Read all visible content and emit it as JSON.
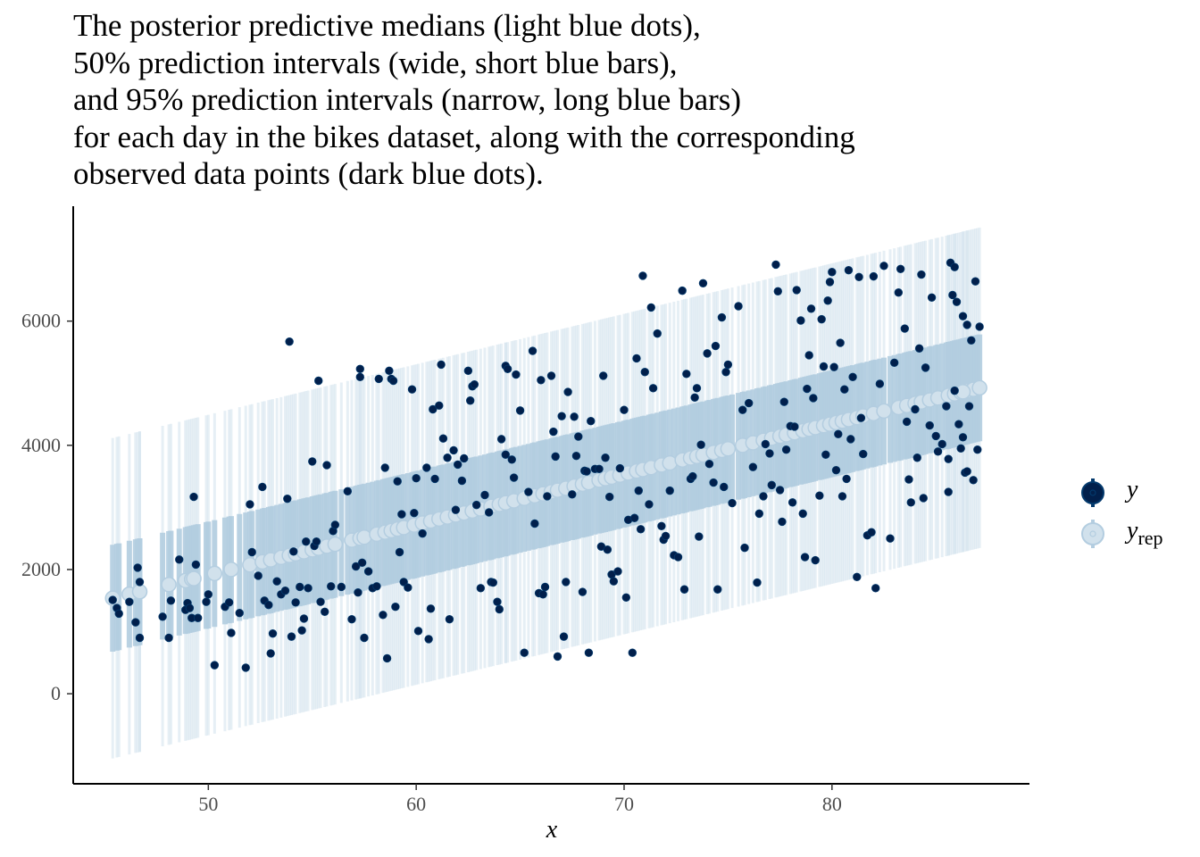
{
  "chart_data": {
    "type": "scatter",
    "title_lines": [
      "The posterior predictive medians (light blue dots),",
      "50% prediction intervals (wide, short blue bars),",
      "and 95% prediction intervals (narrow, long blue bars)",
      "for each day in the bikes dataset, along with the corresponding",
      "observed data points (dark blue dots)."
    ],
    "xlabel": "x",
    "ylabel": "",
    "xlim": [
      43.5,
      89.5
    ],
    "ylim": [
      -1450,
      7850
    ],
    "x_ticks": [
      50,
      60,
      70,
      80
    ],
    "y_ticks": [
      0,
      2000,
      4000,
      6000
    ],
    "grid": false,
    "legend": {
      "placement": "right",
      "entries": [
        {
          "label": "y",
          "subscript": ""
        },
        {
          "label": "y",
          "subscript": "rep"
        }
      ]
    },
    "colors": {
      "observed": "#011f4b",
      "observed_edge": "#03396c",
      "median": "#d1e1ec",
      "median_edge": "#b3cde0",
      "interval_50": "#b3cde0",
      "interval_95": "#d1e1ec",
      "axis": "#000000"
    },
    "model": {
      "median_intercept": 1530,
      "median_slope_per_x": 81.25,
      "median_x0": 45.3,
      "interval_50_halfwidth": 860,
      "interval_95_halfwidth": 2580
    },
    "series": [
      {
        "name": "y",
        "points": [
          [
            45.4,
            1510
          ],
          [
            45.6,
            1380
          ],
          [
            45.7,
            1290
          ],
          [
            46.2,
            1480
          ],
          [
            46.5,
            1150
          ],
          [
            46.6,
            2030
          ],
          [
            46.7,
            1800
          ],
          [
            46.7,
            900
          ],
          [
            47.8,
            1240
          ],
          [
            48.1,
            900
          ],
          [
            48.2,
            1500
          ],
          [
            48.6,
            2160
          ],
          [
            48.9,
            1350
          ],
          [
            49.0,
            1460
          ],
          [
            49.1,
            1380
          ],
          [
            49.2,
            1220
          ],
          [
            49.4,
            2080
          ],
          [
            49.5,
            1220
          ],
          [
            49.3,
            3170
          ],
          [
            49.9,
            1480
          ],
          [
            50.0,
            1600
          ],
          [
            50.3,
            460
          ],
          [
            50.8,
            1400
          ],
          [
            51.0,
            1470
          ],
          [
            51.1,
            980
          ],
          [
            51.5,
            1300
          ],
          [
            51.8,
            420
          ],
          [
            52.0,
            3050
          ],
          [
            52.1,
            2280
          ],
          [
            52.4,
            1900
          ],
          [
            52.6,
            3330
          ],
          [
            52.7,
            1500
          ],
          [
            52.9,
            1430
          ],
          [
            53.0,
            650
          ],
          [
            53.1,
            970
          ],
          [
            53.3,
            1810
          ],
          [
            53.5,
            1600
          ],
          [
            53.7,
            1660
          ],
          [
            53.8,
            3140
          ],
          [
            53.9,
            5670
          ],
          [
            54.0,
            920
          ],
          [
            54.1,
            2290
          ],
          [
            54.2,
            1470
          ],
          [
            54.4,
            1720
          ],
          [
            54.5,
            1020
          ],
          [
            54.6,
            1210
          ],
          [
            54.7,
            2450
          ],
          [
            54.8,
            1700
          ],
          [
            55.0,
            3740
          ],
          [
            55.1,
            2380
          ],
          [
            55.2,
            2450
          ],
          [
            55.3,
            5040
          ],
          [
            55.4,
            1480
          ],
          [
            55.6,
            1320
          ],
          [
            55.7,
            3680
          ],
          [
            55.9,
            1730
          ],
          [
            56.0,
            2620
          ],
          [
            56.1,
            2720
          ],
          [
            56.4,
            1720
          ],
          [
            56.7,
            3260
          ],
          [
            56.9,
            1200
          ],
          [
            57.1,
            2050
          ],
          [
            57.2,
            1630
          ],
          [
            57.3,
            5230
          ],
          [
            57.3,
            5100
          ],
          [
            57.4,
            2110
          ],
          [
            57.5,
            900
          ],
          [
            57.7,
            1970
          ],
          [
            57.9,
            1700
          ],
          [
            58.1,
            1730
          ],
          [
            58.2,
            5070
          ],
          [
            58.4,
            1270
          ],
          [
            58.5,
            3640
          ],
          [
            58.6,
            570
          ],
          [
            58.7,
            5200
          ],
          [
            58.8,
            5070
          ],
          [
            58.9,
            5040
          ],
          [
            59.0,
            1400
          ],
          [
            59.1,
            3420
          ],
          [
            59.2,
            2280
          ],
          [
            59.3,
            2890
          ],
          [
            59.4,
            1800
          ],
          [
            59.6,
            1710
          ],
          [
            59.8,
            4900
          ],
          [
            59.9,
            2910
          ],
          [
            60.0,
            3470
          ],
          [
            60.1,
            1010
          ],
          [
            60.3,
            2580
          ],
          [
            60.5,
            3640
          ],
          [
            60.6,
            880
          ],
          [
            60.7,
            1370
          ],
          [
            60.8,
            4580
          ],
          [
            60.9,
            3460
          ],
          [
            61.1,
            4640
          ],
          [
            61.2,
            5300
          ],
          [
            61.3,
            4110
          ],
          [
            61.5,
            3800
          ],
          [
            61.6,
            1200
          ],
          [
            61.8,
            3920
          ],
          [
            61.9,
            2960
          ],
          [
            62.0,
            3690
          ],
          [
            62.2,
            3430
          ],
          [
            62.3,
            3790
          ],
          [
            62.5,
            5200
          ],
          [
            62.6,
            4720
          ],
          [
            62.7,
            4950
          ],
          [
            62.8,
            4980
          ],
          [
            62.9,
            3040
          ],
          [
            63.1,
            1700
          ],
          [
            63.3,
            3200
          ],
          [
            63.5,
            2920
          ],
          [
            63.6,
            1800
          ],
          [
            63.7,
            1790
          ],
          [
            63.9,
            1480
          ],
          [
            64.0,
            1360
          ],
          [
            64.1,
            4100
          ],
          [
            64.3,
            3850
          ],
          [
            64.3,
            5280
          ],
          [
            64.4,
            5230
          ],
          [
            64.6,
            3770
          ],
          [
            64.7,
            3480
          ],
          [
            64.8,
            5140
          ],
          [
            65.0,
            4560
          ],
          [
            65.2,
            660
          ],
          [
            65.4,
            3250
          ],
          [
            65.6,
            5520
          ],
          [
            65.7,
            2740
          ],
          [
            65.9,
            1620
          ],
          [
            66.0,
            5050
          ],
          [
            66.1,
            1600
          ],
          [
            66.2,
            1720
          ],
          [
            66.3,
            3180
          ],
          [
            66.5,
            5120
          ],
          [
            66.6,
            4220
          ],
          [
            66.7,
            3820
          ],
          [
            66.8,
            600
          ],
          [
            67.0,
            4470
          ],
          [
            67.1,
            920
          ],
          [
            67.2,
            1800
          ],
          [
            67.3,
            4860
          ],
          [
            67.5,
            3210
          ],
          [
            67.6,
            4460
          ],
          [
            67.7,
            3830
          ],
          [
            67.8,
            4140
          ],
          [
            68.0,
            1640
          ],
          [
            68.1,
            3590
          ],
          [
            68.2,
            3580
          ],
          [
            68.3,
            660
          ],
          [
            68.4,
            4390
          ],
          [
            68.6,
            3620
          ],
          [
            68.8,
            3620
          ],
          [
            68.9,
            2370
          ],
          [
            69.0,
            5120
          ],
          [
            69.1,
            3800
          ],
          [
            69.2,
            2320
          ],
          [
            69.3,
            3170
          ],
          [
            69.4,
            1920
          ],
          [
            69.5,
            1810
          ],
          [
            69.7,
            1970
          ],
          [
            69.8,
            3630
          ],
          [
            70.0,
            4570
          ],
          [
            70.1,
            1550
          ],
          [
            70.2,
            2800
          ],
          [
            70.4,
            660
          ],
          [
            70.5,
            2830
          ],
          [
            70.6,
            5400
          ],
          [
            70.7,
            3270
          ],
          [
            70.8,
            2650
          ],
          [
            70.9,
            6730
          ],
          [
            71.0,
            5180
          ],
          [
            71.2,
            3050
          ],
          [
            71.3,
            6220
          ],
          [
            71.4,
            4920
          ],
          [
            71.6,
            5800
          ],
          [
            71.8,
            2700
          ],
          [
            71.9,
            2480
          ],
          [
            72.0,
            2540
          ],
          [
            72.2,
            3270
          ],
          [
            72.4,
            2230
          ],
          [
            72.6,
            2200
          ],
          [
            72.8,
            6490
          ],
          [
            72.9,
            1680
          ],
          [
            73.0,
            5150
          ],
          [
            73.2,
            3460
          ],
          [
            73.3,
            3500
          ],
          [
            73.4,
            4770
          ],
          [
            73.5,
            4920
          ],
          [
            73.6,
            2530
          ],
          [
            73.7,
            4010
          ],
          [
            73.8,
            6610
          ],
          [
            74.0,
            5480
          ],
          [
            74.1,
            3700
          ],
          [
            74.3,
            3400
          ],
          [
            74.4,
            5600
          ],
          [
            74.5,
            1680
          ],
          [
            74.7,
            6060
          ],
          [
            74.8,
            3330
          ],
          [
            74.9,
            5180
          ],
          [
            75.0,
            5300
          ],
          [
            75.2,
            3070
          ],
          [
            75.5,
            6240
          ],
          [
            75.7,
            4570
          ],
          [
            75.8,
            2350
          ],
          [
            76.0,
            4680
          ],
          [
            76.2,
            3650
          ],
          [
            76.4,
            1790
          ],
          [
            76.5,
            2900
          ],
          [
            76.7,
            3180
          ],
          [
            76.8,
            4020
          ],
          [
            77.0,
            3870
          ],
          [
            77.1,
            3360
          ],
          [
            77.3,
            6910
          ],
          [
            77.4,
            6480
          ],
          [
            77.5,
            3280
          ],
          [
            77.6,
            2770
          ],
          [
            77.7,
            4700
          ],
          [
            77.8,
            3930
          ],
          [
            78.0,
            4310
          ],
          [
            78.1,
            3080
          ],
          [
            78.2,
            4300
          ],
          [
            78.3,
            6500
          ],
          [
            78.5,
            6010
          ],
          [
            78.6,
            2900
          ],
          [
            78.7,
            2200
          ],
          [
            78.8,
            4910
          ],
          [
            78.9,
            5450
          ],
          [
            79.0,
            6200
          ],
          [
            79.1,
            4760
          ],
          [
            79.2,
            2150
          ],
          [
            79.4,
            3190
          ],
          [
            79.5,
            6030
          ],
          [
            79.6,
            5270
          ],
          [
            79.7,
            3850
          ],
          [
            79.8,
            6330
          ],
          [
            79.9,
            6630
          ],
          [
            80.0,
            6790
          ],
          [
            80.1,
            5260
          ],
          [
            80.2,
            3600
          ],
          [
            80.3,
            4180
          ],
          [
            80.4,
            5650
          ],
          [
            80.5,
            3180
          ],
          [
            80.6,
            4900
          ],
          [
            80.7,
            3460
          ],
          [
            80.8,
            6820
          ],
          [
            80.9,
            4100
          ],
          [
            81.0,
            5100
          ],
          [
            81.2,
            1880
          ],
          [
            81.3,
            6710
          ],
          [
            81.4,
            4440
          ],
          [
            81.5,
            3860
          ],
          [
            81.7,
            2550
          ],
          [
            81.9,
            2600
          ],
          [
            82.0,
            6720
          ],
          [
            82.1,
            1700
          ],
          [
            82.3,
            4990
          ],
          [
            82.5,
            6890
          ],
          [
            82.8,
            2500
          ],
          [
            83.0,
            5330
          ],
          [
            83.2,
            6460
          ],
          [
            83.3,
            6840
          ],
          [
            83.5,
            5880
          ],
          [
            83.6,
            4380
          ],
          [
            83.7,
            3450
          ],
          [
            83.8,
            3080
          ],
          [
            84.0,
            4580
          ],
          [
            84.1,
            3800
          ],
          [
            84.2,
            5560
          ],
          [
            84.3,
            6750
          ],
          [
            84.4,
            3150
          ],
          [
            84.5,
            5250
          ],
          [
            84.7,
            4320
          ],
          [
            84.8,
            6380
          ],
          [
            85.0,
            4150
          ],
          [
            85.1,
            3900
          ],
          [
            85.3,
            4020
          ],
          [
            85.5,
            4630
          ],
          [
            85.6,
            3780
          ],
          [
            85.7,
            6940
          ],
          [
            85.8,
            6420
          ],
          [
            85.9,
            6870
          ],
          [
            86.0,
            6310
          ],
          [
            86.1,
            4340
          ],
          [
            86.2,
            3950
          ],
          [
            86.3,
            4130
          ],
          [
            86.4,
            3560
          ],
          [
            86.5,
            3580
          ],
          [
            86.6,
            4630
          ],
          [
            86.7,
            5690
          ],
          [
            86.8,
            3440
          ],
          [
            86.9,
            6640
          ],
          [
            87.0,
            3930
          ],
          [
            87.1,
            5910
          ],
          [
            85.6,
            3250
          ],
          [
            85.9,
            4880
          ],
          [
            86.3,
            6080
          ],
          [
            86.5,
            5940
          ]
        ]
      }
    ]
  }
}
